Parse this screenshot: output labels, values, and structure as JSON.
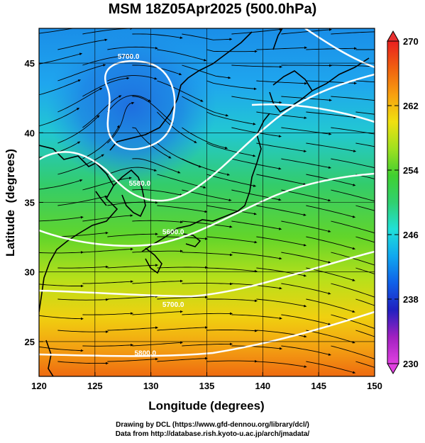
{
  "title": "MSM 18Z05Apr2025 (500.0hPa)",
  "credits": {
    "line1": "Drawing by DCL (https://www.gfd-dennou.org/library/dcl/)",
    "line2": "Data from http://database.rish.kyoto-u.ac.jp/arch/jmadata/"
  },
  "chart_data": {
    "type": "heatmap",
    "xlabel": "Longitude (degrees)",
    "ylabel": "Latitude  (degrees)",
    "xlim": [
      120,
      150
    ],
    "ylim": [
      22.5,
      47.5
    ],
    "xticks": [
      120,
      125,
      130,
      135,
      140,
      145,
      150
    ],
    "yticks": [
      25,
      30,
      35,
      40,
      45
    ],
    "grid": true,
    "colorbar": {
      "min": 230,
      "max": 270,
      "ticks": [
        230,
        238,
        246,
        254,
        262,
        270
      ],
      "colors": [
        "#e040e0",
        "#a020c0",
        "#2020c0",
        "#1060e8",
        "#10a8f0",
        "#20e0d8",
        "#30d070",
        "#40d030",
        "#a0e020",
        "#f0e010",
        "#f8a010",
        "#f06010",
        "#e82020"
      ]
    },
    "contour_labels": [
      {
        "text": "5700.0",
        "lon": 128.0,
        "lat": 45.3
      },
      {
        "text": "5580.0",
        "lon": 129.0,
        "lat": 36.2
      },
      {
        "text": "5600.0",
        "lon": 132.0,
        "lat": 32.7
      },
      {
        "text": "5700.0",
        "lon": 132.0,
        "lat": 27.5
      },
      {
        "text": "5800.0",
        "lon": 129.5,
        "lat": 24.0
      }
    ]
  }
}
